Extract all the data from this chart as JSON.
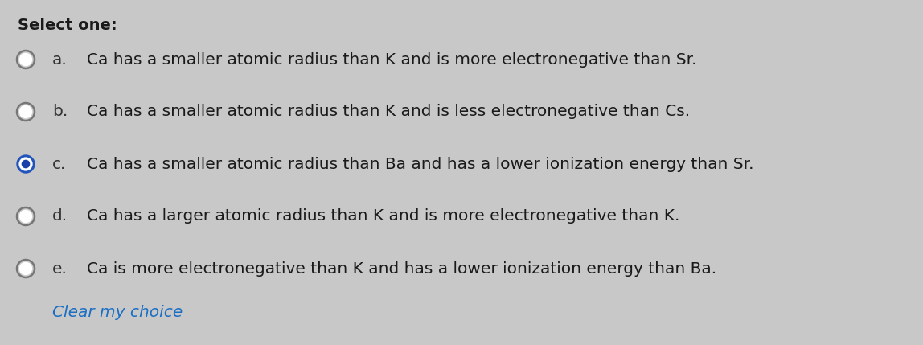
{
  "title": "Select one:",
  "background_color": "#c8c8c8",
  "title_fontsize": 14,
  "title_fontweight": "bold",
  "option_fontsize": 14.5,
  "options": [
    {
      "letter": "a.",
      "text": "Ca has a smaller atomic radius than K and is more electronegative than Sr.",
      "selected": false
    },
    {
      "letter": "b.",
      "text": "Ca has a smaller atomic radius than K and is less electronegative than Cs.",
      "selected": false
    },
    {
      "letter": "c.",
      "text": "Ca has a smaller atomic radius than Ba and has a lower ionization energy than Sr.",
      "selected": true
    },
    {
      "letter": "d.",
      "text": "Ca has a larger atomic radius than K and is more electronegative than K.",
      "selected": false
    },
    {
      "letter": "e.",
      "text": "Ca is more electronegative than K and has a lower ionization energy than Ba.",
      "selected": false
    }
  ],
  "clear_text": "Clear my choice",
  "clear_color": "#1a6fc4",
  "radio_color_unselected_edge": "#777777",
  "radio_color_unselected_face": "#cccccc",
  "radio_color_selected_outer": "#2255bb",
  "radio_color_selected_white": "#ffffff",
  "radio_color_selected_inner": "#1a40aa",
  "text_color": "#1a1a1a",
  "letter_color": "#333333"
}
